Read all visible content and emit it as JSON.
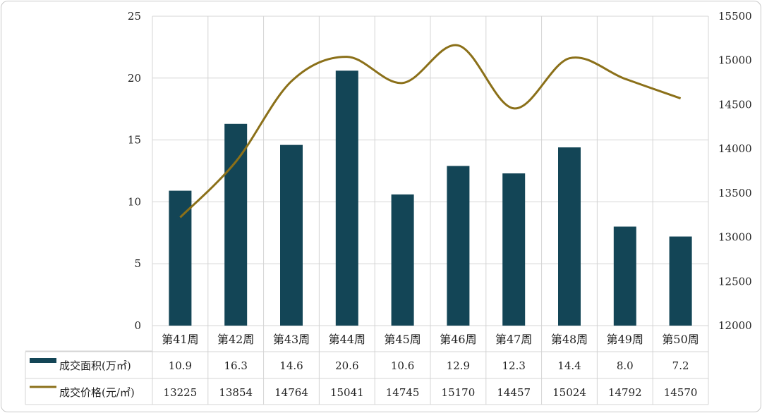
{
  "chart_data": {
    "type": "bar",
    "categories": [
      "第41周",
      "第42周",
      "第43周",
      "第44周",
      "第45周",
      "第46周",
      "第47周",
      "第48周",
      "第49周",
      "第50周"
    ],
    "series": [
      {
        "name": "成交面积(万㎡)",
        "type": "bar",
        "axis": "left",
        "values": [
          10.9,
          16.3,
          14.6,
          20.6,
          10.6,
          12.9,
          12.3,
          14.4,
          8.0,
          7.2
        ],
        "labels": [
          "10.9",
          "16.3",
          "14.6",
          "20.6",
          "10.6",
          "12.9",
          "12.3",
          "14.4",
          "8.0",
          "7.2"
        ],
        "color": "#134556"
      },
      {
        "name": "成交价格(元/㎡)",
        "type": "line",
        "axis": "right",
        "values": [
          13225,
          13854,
          14764,
          15041,
          14745,
          15170,
          14457,
          15024,
          14792,
          14570
        ],
        "labels": [
          "13225",
          "13854",
          "14764",
          "15041",
          "14745",
          "15170",
          "14457",
          "15024",
          "14792",
          "14570"
        ],
        "color": "#8b7019"
      }
    ],
    "y_left": {
      "min": 0,
      "max": 25,
      "ticks": [
        "0",
        "5",
        "10",
        "15",
        "20",
        "25"
      ]
    },
    "y_right": {
      "min": 12000,
      "max": 15500,
      "ticks": [
        "12000",
        "12500",
        "13000",
        "13500",
        "14000",
        "14500",
        "15000",
        "15500"
      ]
    },
    "grid": true,
    "data_table": true,
    "line_smooth": true
  }
}
